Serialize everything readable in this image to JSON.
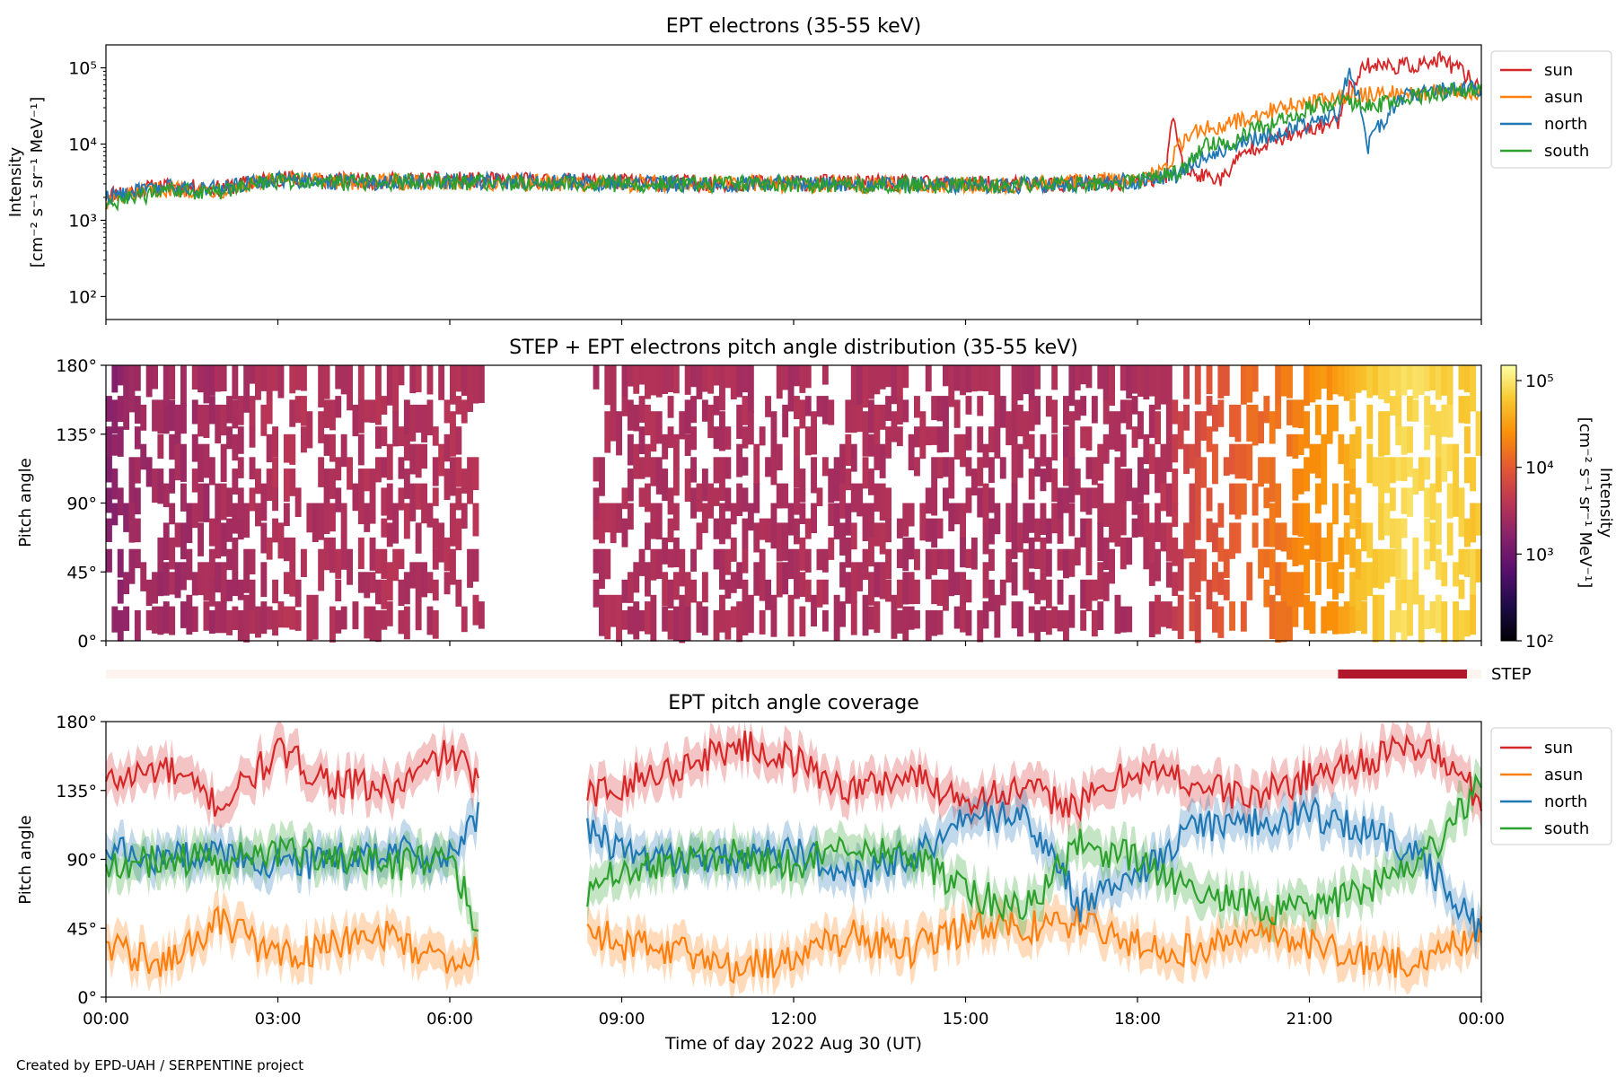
{
  "figure": {
    "xlabel": "Time of day 2022 Aug 30 (UT)",
    "credit": "Created by EPD-UAH / SERPENTINE project",
    "x_ticks": [
      "00:00",
      "03:00",
      "06:00",
      "09:00",
      "12:00",
      "15:00",
      "18:00",
      "21:00",
      "00:00"
    ]
  },
  "chart_data": [
    {
      "type": "line",
      "title": "EPT electrons (35-55 keV)",
      "ylabel_line1": "Intensity",
      "ylabel_line2": "[cm⁻² s⁻¹ sr⁻¹ MeV⁻¹]",
      "yscale": "log",
      "ylim": [
        50,
        200000
      ],
      "y_ticks": [
        {
          "value": 100,
          "label": "10²"
        },
        {
          "value": 1000,
          "label": "10³"
        },
        {
          "value": 10000,
          "label": "10⁴"
        },
        {
          "value": 100000,
          "label": "10⁵"
        }
      ],
      "x_unit": "hours",
      "xlim": [
        0,
        24
      ],
      "legend": "outside-right",
      "series": [
        {
          "name": "sun",
          "color": "#d62728",
          "x": [
            0,
            1,
            2,
            3,
            4,
            5,
            6,
            7,
            8,
            9,
            10,
            11,
            12,
            13,
            14,
            15,
            16,
            17,
            18,
            18.5,
            18.6,
            18.8,
            19,
            19.5,
            20,
            20.5,
            21,
            21.5,
            21.8,
            22,
            22.5,
            23,
            23.3,
            23.6,
            24
          ],
          "y": [
            2200,
            2800,
            2600,
            3600,
            3300,
            3300,
            3400,
            3300,
            3300,
            3200,
            3100,
            3100,
            3100,
            3100,
            3000,
            3000,
            2950,
            3000,
            3200,
            3500,
            20000,
            4500,
            4000,
            3500,
            9000,
            12000,
            15000,
            20000,
            70000,
            110000,
            105000,
            110000,
            125000,
            95000,
            50000
          ]
        },
        {
          "name": "asun",
          "color": "#ff7f0e",
          "x": [
            0,
            1,
            2,
            3,
            4,
            5,
            6,
            7,
            8,
            9,
            10,
            11,
            12,
            13,
            14,
            15,
            16,
            17,
            18,
            18.5,
            19,
            19.5,
            20,
            20.5,
            21,
            21.5,
            22,
            23,
            24
          ],
          "y": [
            1800,
            2600,
            2500,
            3400,
            3200,
            3200,
            3200,
            3100,
            3100,
            3000,
            3000,
            3000,
            3000,
            2950,
            2950,
            2900,
            2900,
            3200,
            3500,
            4500,
            15000,
            18000,
            22000,
            30000,
            35000,
            42000,
            45000,
            48000,
            50000
          ]
        },
        {
          "name": "north",
          "color": "#1f77b4",
          "x": [
            0,
            1,
            2,
            3,
            4,
            5,
            6,
            7,
            8,
            9,
            10,
            11,
            12,
            13,
            14,
            15,
            16,
            17,
            18,
            18.8,
            19,
            19.5,
            20,
            20.5,
            21,
            21.5,
            21.7,
            22,
            22.3,
            22.6,
            23,
            24
          ],
          "y": [
            2000,
            2700,
            2600,
            3500,
            3200,
            3200,
            3300,
            3200,
            3200,
            3100,
            3000,
            3000,
            3000,
            3000,
            2950,
            2900,
            2900,
            3000,
            3300,
            4000,
            6000,
            8000,
            12000,
            14000,
            18000,
            25000,
            80000,
            8000,
            20000,
            40000,
            50000,
            55000
          ]
        },
        {
          "name": "south",
          "color": "#2ca02c",
          "x": [
            0,
            1,
            2,
            3,
            4,
            5,
            6,
            7,
            8,
            9,
            10,
            11,
            12,
            13,
            14,
            15,
            16,
            17,
            18,
            18.8,
            19.2,
            19.6,
            20,
            20.5,
            21,
            21.5,
            22,
            22.5,
            23,
            24
          ],
          "y": [
            1500,
            2400,
            2400,
            3300,
            3100,
            3200,
            3200,
            3100,
            3100,
            3000,
            3000,
            3000,
            3000,
            2900,
            2900,
            2900,
            2900,
            3000,
            3200,
            4500,
            10000,
            9000,
            15000,
            20000,
            30000,
            35000,
            32000,
            35000,
            45000,
            55000
          ]
        }
      ]
    },
    {
      "type": "heatmap",
      "title": "STEP + EPT electrons pitch angle distribution (35-55 keV)",
      "ylabel": "Pitch angle",
      "ylim": [
        0,
        180
      ],
      "y_ticks": [
        "0°",
        "45°",
        "90°",
        "135°",
        "180°"
      ],
      "xlim": [
        0,
        24
      ],
      "data_gap_hours": [
        6.5,
        8.4
      ],
      "colorbar": {
        "label_line1": "Intensity",
        "label_line2": "[cm⁻² s⁻¹ sr⁻¹ MeV⁻¹]",
        "scale": "log",
        "range": [
          100,
          150000
        ],
        "ticks": [
          {
            "value": 100,
            "label": "10²"
          },
          {
            "value": 1000,
            "label": "10³"
          },
          {
            "value": 10000,
            "label": "10⁴"
          },
          {
            "value": 100000,
            "label": "10⁵"
          }
        ]
      },
      "intensity_profile": {
        "x": [
          0,
          0.5,
          1,
          2,
          3,
          4,
          5,
          6,
          6.5,
          8.4,
          9,
          10,
          11,
          12,
          13,
          14,
          15,
          16,
          17,
          18,
          18.5,
          19,
          19.5,
          20,
          20.5,
          21,
          21.5,
          22,
          22.5,
          23,
          24
        ],
        "y": [
          1500,
          2300,
          2500,
          2700,
          3300,
          3200,
          3200,
          3300,
          3300,
          3100,
          3000,
          3000,
          3000,
          3000,
          3000,
          2950,
          2900,
          2900,
          2950,
          3000,
          3600,
          7000,
          10000,
          13000,
          16000,
          22000,
          30000,
          60000,
          80000,
          80000,
          60000
        ]
      }
    },
    {
      "type": "bar",
      "label": "STEP",
      "xlim": [
        0,
        24
      ],
      "coverage_hours": [
        21.5,
        23.75
      ],
      "colors": {
        "active": "#b2182b",
        "inactive": "#fff5f0"
      }
    },
    {
      "type": "line",
      "title": "EPT pitch angle coverage",
      "ylabel": "Pitch angle",
      "ylim": [
        0,
        180
      ],
      "y_ticks": [
        "0°",
        "45°",
        "90°",
        "135°",
        "180°"
      ],
      "xlim": [
        0,
        24
      ],
      "data_gap_hours": [
        6.5,
        8.4
      ],
      "uncertainty_band_deg": 12,
      "legend": "outside-right",
      "series": [
        {
          "name": "sun",
          "color": "#d62728",
          "x": [
            0,
            1,
            2,
            3,
            4,
            5,
            6,
            6.5,
            8.4,
            9,
            10,
            11,
            12,
            13,
            14,
            15,
            16,
            17,
            18,
            19,
            20,
            21,
            22,
            23,
            24
          ],
          "y": [
            140,
            150,
            125,
            160,
            140,
            135,
            160,
            140,
            130,
            140,
            150,
            165,
            155,
            135,
            145,
            130,
            135,
            125,
            150,
            140,
            130,
            145,
            155,
            165,
            130
          ]
        },
        {
          "name": "asun",
          "color": "#ff7f0e",
          "x": [
            0,
            1,
            2,
            3,
            4,
            5,
            6,
            6.5,
            8.4,
            9,
            10,
            11,
            12,
            13,
            14,
            15,
            16,
            17,
            18,
            19,
            20,
            21,
            22,
            23,
            24
          ],
          "y": [
            35,
            20,
            50,
            25,
            35,
            40,
            20,
            30,
            45,
            35,
            30,
            20,
            25,
            40,
            30,
            45,
            45,
            50,
            35,
            30,
            45,
            35,
            25,
            20,
            45
          ]
        },
        {
          "name": "north",
          "color": "#1f77b4",
          "x": [
            0,
            1,
            2,
            3,
            4,
            5,
            6,
            6.5,
            8.4,
            9,
            10,
            11,
            12,
            13,
            14,
            15,
            16,
            17,
            18,
            19,
            20,
            21,
            22,
            23,
            24
          ],
          "y": [
            95,
            90,
            95,
            85,
            90,
            95,
            90,
            120,
            110,
            95,
            90,
            90,
            95,
            80,
            90,
            115,
            120,
            60,
            80,
            110,
            115,
            120,
            110,
            90,
            40
          ]
        },
        {
          "name": "south",
          "color": "#2ca02c",
          "x": [
            0,
            1,
            2,
            3,
            4,
            5,
            6,
            6.5,
            8.4,
            9,
            10,
            11,
            12,
            13,
            14,
            15,
            16,
            17,
            18,
            19,
            20,
            21,
            22,
            23,
            24
          ],
          "y": [
            85,
            90,
            90,
            95,
            90,
            85,
            95,
            45,
            70,
            85,
            90,
            95,
            85,
            100,
            95,
            70,
            55,
            100,
            90,
            70,
            60,
            55,
            70,
            90,
            140
          ]
        }
      ]
    }
  ]
}
